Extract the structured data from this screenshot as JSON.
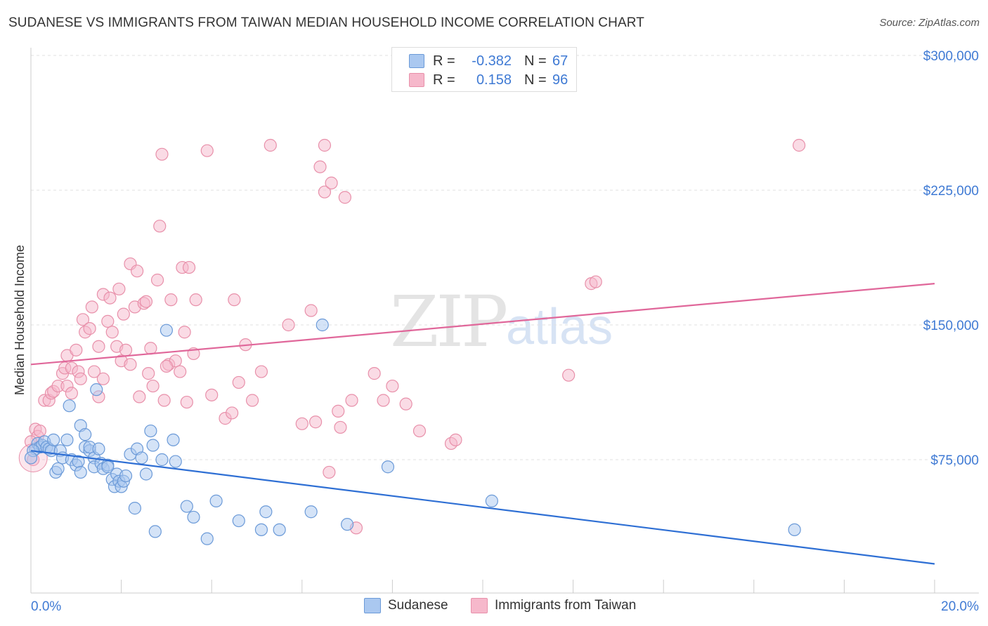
{
  "header": {
    "title": "SUDANESE VS IMMIGRANTS FROM TAIWAN MEDIAN HOUSEHOLD INCOME CORRELATION CHART",
    "source": "Source: ZipAtlas.com"
  },
  "watermark": {
    "zip": "ZIP",
    "atlas": "atlas"
  },
  "legend": {
    "rows": [
      {
        "r_label": "R =",
        "r_value": "-0.382",
        "n_label": "N =",
        "n_value": "67",
        "color": "#aac8f0"
      },
      {
        "r_label": "R =",
        "r_value": "0.158",
        "n_label": "N =",
        "n_value": "96",
        "color": "#f6b8cb"
      }
    ]
  },
  "bottom_legend": {
    "series1": "Sudanese",
    "series2": "Immigrants from Taiwan"
  },
  "axes": {
    "y_title": "Median Household Income",
    "y_ticks": [
      "$75,000",
      "$150,000",
      "$225,000",
      "$300,000"
    ],
    "x_min_label": "0.0%",
    "x_max_label": "20.0%"
  },
  "colors": {
    "blue_fill": "#aac8f0",
    "blue_stroke": "#6b9ad8",
    "blue_line": "#2e6fd4",
    "pink_fill": "#f6b8cb",
    "pink_stroke": "#e890aa",
    "pink_line": "#e0679a"
  },
  "chart_data": {
    "type": "scatter",
    "title": "SUDANESE VS IMMIGRANTS FROM TAIWAN MEDIAN HOUSEHOLD INCOME CORRELATION CHART",
    "xlabel": "",
    "ylabel": "Median Household Income",
    "xlim": [
      0,
      20
    ],
    "ylim": [
      0,
      310000
    ],
    "y_ticks": [
      75000,
      150000,
      225000,
      300000
    ],
    "grid": true,
    "series": [
      {
        "name": "Sudanese",
        "trend": {
          "x": [
            0,
            20
          ],
          "y": [
            80000,
            17000
          ]
        },
        "points": [
          [
            0.1,
            81000
          ],
          [
            0.15,
            84000
          ],
          [
            0.2,
            82000
          ],
          [
            0.25,
            83000
          ],
          [
            0.3,
            85000
          ],
          [
            0.35,
            82000
          ],
          [
            0.4,
            81000
          ],
          [
            0.45,
            80000
          ],
          [
            0.5,
            86000
          ],
          [
            0.55,
            68000
          ],
          [
            0.6,
            70000
          ],
          [
            0.65,
            80000
          ],
          [
            0.7,
            76000
          ],
          [
            0.8,
            86000
          ],
          [
            0.85,
            105000
          ],
          [
            0.9,
            75000
          ],
          [
            1.0,
            72000
          ],
          [
            1.05,
            74000
          ],
          [
            1.1,
            68000
          ],
          [
            1.1,
            94000
          ],
          [
            1.2,
            82000
          ],
          [
            1.2,
            89000
          ],
          [
            1.3,
            80000
          ],
          [
            1.3,
            82000
          ],
          [
            1.4,
            76000
          ],
          [
            1.4,
            71000
          ],
          [
            1.45,
            114000
          ],
          [
            1.5,
            81000
          ],
          [
            1.55,
            73000
          ],
          [
            1.6,
            70000
          ],
          [
            1.7,
            72000
          ],
          [
            1.7,
            71000
          ],
          [
            1.8,
            64000
          ],
          [
            1.85,
            60000
          ],
          [
            1.9,
            67000
          ],
          [
            1.95,
            63000
          ],
          [
            2.0,
            60000
          ],
          [
            2.05,
            63000
          ],
          [
            2.1,
            66000
          ],
          [
            2.2,
            78000
          ],
          [
            2.3,
            48000
          ],
          [
            2.35,
            81000
          ],
          [
            2.45,
            76000
          ],
          [
            2.55,
            67000
          ],
          [
            2.65,
            91000
          ],
          [
            2.7,
            83000
          ],
          [
            2.75,
            35000
          ],
          [
            2.9,
            75000
          ],
          [
            3.0,
            147000
          ],
          [
            3.15,
            86000
          ],
          [
            3.2,
            74000
          ],
          [
            3.45,
            49000
          ],
          [
            3.6,
            43000
          ],
          [
            3.9,
            31000
          ],
          [
            4.1,
            52000
          ],
          [
            4.6,
            41000
          ],
          [
            5.1,
            36000
          ],
          [
            5.2,
            46000
          ],
          [
            5.5,
            36000
          ],
          [
            6.2,
            46000
          ],
          [
            6.45,
            150000
          ],
          [
            7.0,
            39000
          ],
          [
            7.9,
            71000
          ],
          [
            10.2,
            52000
          ],
          [
            16.9,
            36000
          ],
          [
            0.05,
            80000
          ],
          [
            0.0,
            76000
          ]
        ]
      },
      {
        "name": "Immigrants from Taiwan",
        "trend": {
          "x": [
            0,
            20
          ],
          "y": [
            128000,
            173000
          ]
        },
        "points": [
          [
            0.05,
            75000
          ],
          [
            0.1,
            92000
          ],
          [
            0.15,
            88000
          ],
          [
            0.2,
            91000
          ],
          [
            0.3,
            108000
          ],
          [
            0.4,
            108000
          ],
          [
            0.45,
            112000
          ],
          [
            0.5,
            113000
          ],
          [
            0.6,
            116000
          ],
          [
            0.7,
            123000
          ],
          [
            0.75,
            126000
          ],
          [
            0.8,
            116000
          ],
          [
            0.8,
            133000
          ],
          [
            0.9,
            126000
          ],
          [
            0.9,
            112000
          ],
          [
            1.0,
            136000
          ],
          [
            1.05,
            124000
          ],
          [
            1.1,
            120000
          ],
          [
            1.15,
            153000
          ],
          [
            1.2,
            146000
          ],
          [
            1.3,
            148000
          ],
          [
            1.35,
            160000
          ],
          [
            1.4,
            124000
          ],
          [
            1.5,
            138000
          ],
          [
            1.6,
            120000
          ],
          [
            1.6,
            167000
          ],
          [
            1.7,
            152000
          ],
          [
            1.75,
            165000
          ],
          [
            1.8,
            146000
          ],
          [
            1.9,
            138000
          ],
          [
            1.95,
            170000
          ],
          [
            2.0,
            130000
          ],
          [
            2.05,
            156000
          ],
          [
            2.1,
            136000
          ],
          [
            2.2,
            128000
          ],
          [
            2.2,
            184000
          ],
          [
            2.3,
            160000
          ],
          [
            2.35,
            180000
          ],
          [
            2.4,
            110000
          ],
          [
            2.5,
            162000
          ],
          [
            2.55,
            163000
          ],
          [
            2.6,
            123000
          ],
          [
            2.65,
            137000
          ],
          [
            2.7,
            116000
          ],
          [
            2.8,
            175000
          ],
          [
            2.85,
            205000
          ],
          [
            2.9,
            245000
          ],
          [
            2.95,
            108000
          ],
          [
            3.05,
            128000
          ],
          [
            3.1,
            164000
          ],
          [
            3.2,
            130000
          ],
          [
            3.3,
            124000
          ],
          [
            3.35,
            182000
          ],
          [
            3.4,
            146000
          ],
          [
            3.45,
            107000
          ],
          [
            3.5,
            182000
          ],
          [
            3.6,
            134000
          ],
          [
            3.65,
            164000
          ],
          [
            3.9,
            247000
          ],
          [
            4.0,
            111000
          ],
          [
            4.3,
            98000
          ],
          [
            4.45,
            101000
          ],
          [
            4.5,
            164000
          ],
          [
            4.6,
            118000
          ],
          [
            4.75,
            139000
          ],
          [
            4.9,
            108000
          ],
          [
            5.1,
            124000
          ],
          [
            5.3,
            250000
          ],
          [
            5.7,
            150000
          ],
          [
            6.0,
            95000
          ],
          [
            6.2,
            158000
          ],
          [
            6.3,
            96000
          ],
          [
            6.4,
            238000
          ],
          [
            6.5,
            224000
          ],
          [
            6.5,
            250000
          ],
          [
            6.6,
            68000
          ],
          [
            6.65,
            229000
          ],
          [
            6.8,
            102000
          ],
          [
            6.85,
            93000
          ],
          [
            6.95,
            221000
          ],
          [
            7.1,
            108000
          ],
          [
            7.2,
            37000
          ],
          [
            7.6,
            123000
          ],
          [
            7.8,
            108000
          ],
          [
            8.0,
            116000
          ],
          [
            8.3,
            106000
          ],
          [
            8.6,
            91000
          ],
          [
            9.3,
            84000
          ],
          [
            9.4,
            86000
          ],
          [
            11.9,
            122000
          ],
          [
            12.4,
            173000
          ],
          [
            12.5,
            174000
          ],
          [
            17.0,
            250000
          ],
          [
            0.0,
            85000
          ],
          [
            3.0,
            127000
          ],
          [
            1.5,
            110000
          ]
        ]
      }
    ]
  }
}
